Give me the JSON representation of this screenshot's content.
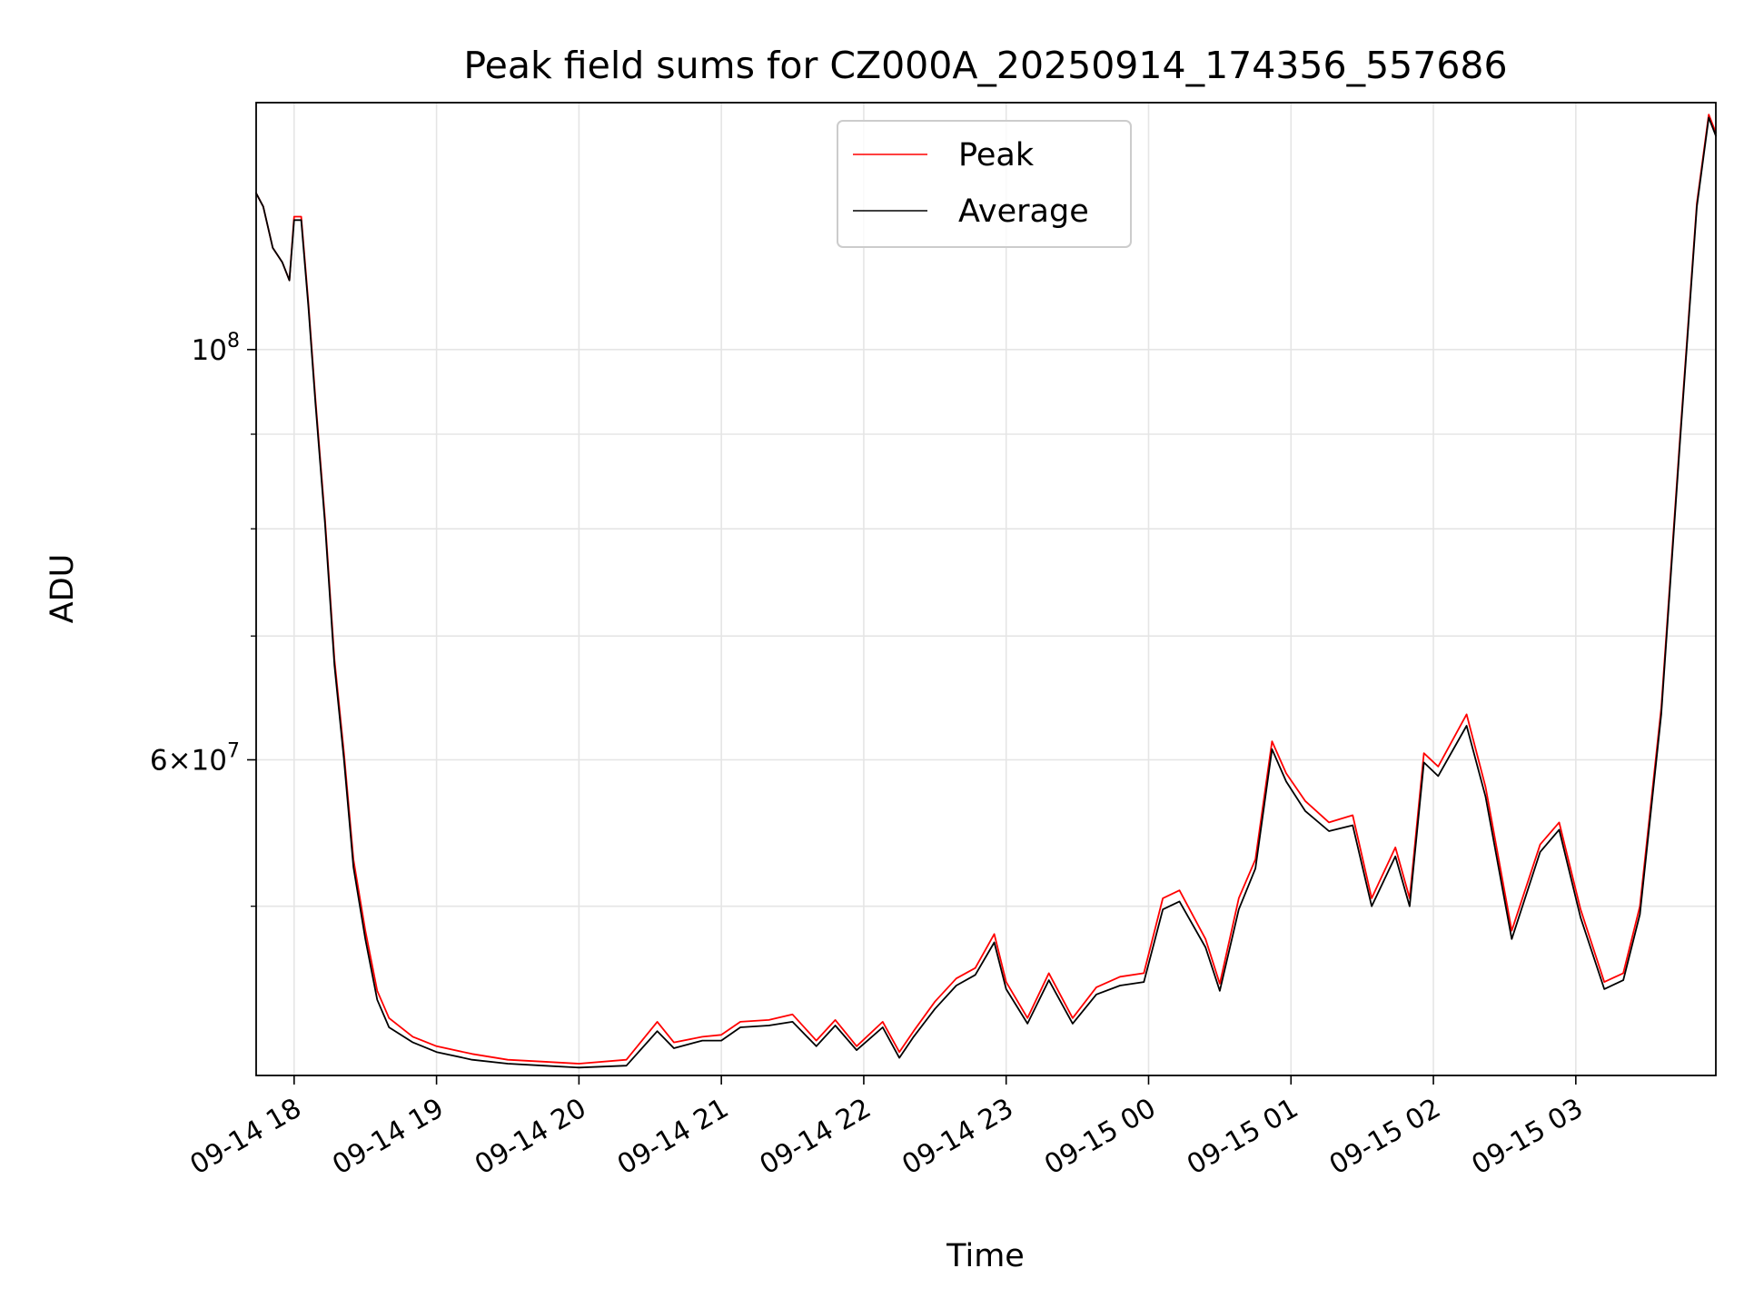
{
  "chart_data": {
    "type": "line",
    "title": "Peak field sums for CZ000A_20250914_174356_557686",
    "xlabel": "Time",
    "ylabel": "ADU",
    "x_scale": "time",
    "y_scale": "log",
    "xlim": [
      "2025-09-14 17:44",
      "2025-09-15 03:59"
    ],
    "ylim": [
      40500000,
      136000000
    ],
    "x_ticks": [
      {
        "t": "2025-09-14 18:00",
        "label": "09-14 18"
      },
      {
        "t": "2025-09-14 19:00",
        "label": "09-14 19"
      },
      {
        "t": "2025-09-14 20:00",
        "label": "09-14 20"
      },
      {
        "t": "2025-09-14 21:00",
        "label": "09-14 21"
      },
      {
        "t": "2025-09-14 22:00",
        "label": "09-14 22"
      },
      {
        "t": "2025-09-14 23:00",
        "label": "09-14 23"
      },
      {
        "t": "2025-09-15 00:00",
        "label": "09-15 00"
      },
      {
        "t": "2025-09-15 01:00",
        "label": "09-15 01"
      },
      {
        "t": "2025-09-15 02:00",
        "label": "09-15 02"
      },
      {
        "t": "2025-09-15 03:00",
        "label": "09-15 03"
      }
    ],
    "y_major_ticks": [
      {
        "value": 100000000,
        "label": "10^8"
      },
      {
        "value": 60000000,
        "label": "6×10^7"
      }
    ],
    "y_minor_ticks": [
      50000000,
      70000000,
      80000000,
      90000000
    ],
    "grid": true,
    "legend_position": "top-center",
    "series": [
      {
        "name": "Peak",
        "color": "#ff0000",
        "points": [
          [
            "2025-09-14 17:44",
            121500000
          ],
          [
            "2025-09-14 17:47",
            119500000
          ],
          [
            "2025-09-14 17:51",
            113500000
          ],
          [
            "2025-09-14 17:55",
            111500000
          ],
          [
            "2025-09-14 17:58",
            109000000
          ],
          [
            "2025-09-14 18:00",
            118000000
          ],
          [
            "2025-09-14 18:03",
            118000000
          ],
          [
            "2025-09-14 18:06",
            106000000
          ],
          [
            "2025-09-14 18:09",
            94000000
          ],
          [
            "2025-09-14 18:13",
            81000000
          ],
          [
            "2025-09-14 18:17",
            68000000
          ],
          [
            "2025-09-14 18:21",
            60500000
          ],
          [
            "2025-09-14 18:25",
            53000000
          ],
          [
            "2025-09-14 18:30",
            48500000
          ],
          [
            "2025-09-14 18:35",
            45000000
          ],
          [
            "2025-09-14 18:40",
            43500000
          ],
          [
            "2025-09-14 18:50",
            42500000
          ],
          [
            "2025-09-14 19:00",
            42000000
          ],
          [
            "2025-09-14 19:15",
            41600000
          ],
          [
            "2025-09-14 19:30",
            41300000
          ],
          [
            "2025-09-14 19:45",
            41200000
          ],
          [
            "2025-09-14 20:00",
            41100000
          ],
          [
            "2025-09-14 20:20",
            41300000
          ],
          [
            "2025-09-14 20:33",
            43300000
          ],
          [
            "2025-09-14 20:40",
            42200000
          ],
          [
            "2025-09-14 20:52",
            42500000
          ],
          [
            "2025-09-14 21:00",
            42600000
          ],
          [
            "2025-09-14 21:08",
            43300000
          ],
          [
            "2025-09-14 21:20",
            43400000
          ],
          [
            "2025-09-14 21:30",
            43700000
          ],
          [
            "2025-09-14 21:40",
            42300000
          ],
          [
            "2025-09-14 21:48",
            43400000
          ],
          [
            "2025-09-14 21:57",
            42000000
          ],
          [
            "2025-09-14 22:08",
            43300000
          ],
          [
            "2025-09-14 22:15",
            41700000
          ],
          [
            "2025-09-14 22:21",
            42800000
          ],
          [
            "2025-09-14 22:30",
            44400000
          ],
          [
            "2025-09-14 22:39",
            45700000
          ],
          [
            "2025-09-14 22:47",
            46300000
          ],
          [
            "2025-09-14 22:55",
            48300000
          ],
          [
            "2025-09-14 23:00",
            45500000
          ],
          [
            "2025-09-14 23:09",
            43500000
          ],
          [
            "2025-09-14 23:18",
            46000000
          ],
          [
            "2025-09-14 23:28",
            43500000
          ],
          [
            "2025-09-14 23:38",
            45200000
          ],
          [
            "2025-09-14 23:48",
            45800000
          ],
          [
            "2025-09-14 23:58",
            46000000
          ],
          [
            "2025-09-15 00:06",
            50500000
          ],
          [
            "2025-09-15 00:13",
            51000000
          ],
          [
            "2025-09-15 00:24",
            48000000
          ],
          [
            "2025-09-15 00:30",
            45400000
          ],
          [
            "2025-09-15 00:38",
            50500000
          ],
          [
            "2025-09-15 00:45",
            53000000
          ],
          [
            "2025-09-15 00:52",
            61400000
          ],
          [
            "2025-09-15 00:58",
            59000000
          ],
          [
            "2025-09-15 01:06",
            57000000
          ],
          [
            "2025-09-15 01:16",
            55500000
          ],
          [
            "2025-09-15 01:26",
            56000000
          ],
          [
            "2025-09-15 01:34",
            50500000
          ],
          [
            "2025-09-15 01:44",
            53800000
          ],
          [
            "2025-09-15 01:50",
            50500000
          ],
          [
            "2025-09-15 01:56",
            60500000
          ],
          [
            "2025-09-15 02:02",
            59500000
          ],
          [
            "2025-09-15 02:14",
            63500000
          ],
          [
            "2025-09-15 02:22",
            58000000
          ],
          [
            "2025-09-15 02:33",
            48500000
          ],
          [
            "2025-09-15 02:45",
            54000000
          ],
          [
            "2025-09-15 02:53",
            55500000
          ],
          [
            "2025-09-15 03:02",
            49800000
          ],
          [
            "2025-09-15 03:12",
            45500000
          ],
          [
            "2025-09-15 03:20",
            46000000
          ],
          [
            "2025-09-15 03:27",
            50000000
          ],
          [
            "2025-09-15 03:36",
            64000000
          ],
          [
            "2025-09-15 03:44",
            90000000
          ],
          [
            "2025-09-15 03:51",
            120000000
          ],
          [
            "2025-09-15 03:56",
            134000000
          ],
          [
            "2025-09-15 03:59",
            131000000
          ]
        ]
      },
      {
        "name": "Average",
        "color": "#000000",
        "points": [
          [
            "2025-09-14 17:44",
            121500000
          ],
          [
            "2025-09-14 17:47",
            119500000
          ],
          [
            "2025-09-14 17:51",
            113500000
          ],
          [
            "2025-09-14 17:55",
            111500000
          ],
          [
            "2025-09-14 17:58",
            109000000
          ],
          [
            "2025-09-14 18:00",
            117500000
          ],
          [
            "2025-09-14 18:03",
            117500000
          ],
          [
            "2025-09-14 18:06",
            105500000
          ],
          [
            "2025-09-14 18:09",
            93500000
          ],
          [
            "2025-09-14 18:13",
            80500000
          ],
          [
            "2025-09-14 18:17",
            67500000
          ],
          [
            "2025-09-14 18:21",
            60000000
          ],
          [
            "2025-09-14 18:25",
            52500000
          ],
          [
            "2025-09-14 18:30",
            48000000
          ],
          [
            "2025-09-14 18:35",
            44500000
          ],
          [
            "2025-09-14 18:40",
            43000000
          ],
          [
            "2025-09-14 18:50",
            42200000
          ],
          [
            "2025-09-14 19:00",
            41700000
          ],
          [
            "2025-09-14 19:15",
            41300000
          ],
          [
            "2025-09-14 19:30",
            41100000
          ],
          [
            "2025-09-14 19:45",
            41000000
          ],
          [
            "2025-09-14 20:00",
            40900000
          ],
          [
            "2025-09-14 20:20",
            41000000
          ],
          [
            "2025-09-14 20:33",
            42800000
          ],
          [
            "2025-09-14 20:40",
            41900000
          ],
          [
            "2025-09-14 20:52",
            42300000
          ],
          [
            "2025-09-14 21:00",
            42300000
          ],
          [
            "2025-09-14 21:08",
            43000000
          ],
          [
            "2025-09-14 21:20",
            43100000
          ],
          [
            "2025-09-14 21:30",
            43300000
          ],
          [
            "2025-09-14 21:40",
            42000000
          ],
          [
            "2025-09-14 21:48",
            43100000
          ],
          [
            "2025-09-14 21:57",
            41800000
          ],
          [
            "2025-09-14 22:08",
            43000000
          ],
          [
            "2025-09-14 22:15",
            41400000
          ],
          [
            "2025-09-14 22:21",
            42500000
          ],
          [
            "2025-09-14 22:30",
            44000000
          ],
          [
            "2025-09-14 22:39",
            45300000
          ],
          [
            "2025-09-14 22:47",
            45900000
          ],
          [
            "2025-09-14 22:55",
            47800000
          ],
          [
            "2025-09-14 23:00",
            45100000
          ],
          [
            "2025-09-14 23:09",
            43200000
          ],
          [
            "2025-09-14 23:18",
            45600000
          ],
          [
            "2025-09-14 23:28",
            43200000
          ],
          [
            "2025-09-14 23:38",
            44800000
          ],
          [
            "2025-09-14 23:48",
            45300000
          ],
          [
            "2025-09-14 23:58",
            45500000
          ],
          [
            "2025-09-15 00:06",
            49800000
          ],
          [
            "2025-09-15 00:13",
            50300000
          ],
          [
            "2025-09-15 00:24",
            47500000
          ],
          [
            "2025-09-15 00:30",
            45000000
          ],
          [
            "2025-09-15 00:38",
            49800000
          ],
          [
            "2025-09-15 00:45",
            52400000
          ],
          [
            "2025-09-15 00:52",
            60800000
          ],
          [
            "2025-09-15 00:58",
            58400000
          ],
          [
            "2025-09-15 01:06",
            56300000
          ],
          [
            "2025-09-15 01:16",
            54900000
          ],
          [
            "2025-09-15 01:26",
            55300000
          ],
          [
            "2025-09-15 01:34",
            50000000
          ],
          [
            "2025-09-15 01:44",
            53200000
          ],
          [
            "2025-09-15 01:50",
            50000000
          ],
          [
            "2025-09-15 01:56",
            59800000
          ],
          [
            "2025-09-15 02:02",
            58800000
          ],
          [
            "2025-09-15 02:14",
            62600000
          ],
          [
            "2025-09-15 02:22",
            57300000
          ],
          [
            "2025-09-15 02:33",
            48000000
          ],
          [
            "2025-09-15 02:45",
            53500000
          ],
          [
            "2025-09-15 02:53",
            55000000
          ],
          [
            "2025-09-15 03:02",
            49300000
          ],
          [
            "2025-09-15 03:12",
            45100000
          ],
          [
            "2025-09-15 03:20",
            45600000
          ],
          [
            "2025-09-15 03:27",
            49500000
          ],
          [
            "2025-09-15 03:36",
            63500000
          ],
          [
            "2025-09-15 03:44",
            89500000
          ],
          [
            "2025-09-15 03:51",
            119500000
          ],
          [
            "2025-09-15 03:56",
            133500000
          ],
          [
            "2025-09-15 03:59",
            130500000
          ]
        ]
      }
    ]
  }
}
